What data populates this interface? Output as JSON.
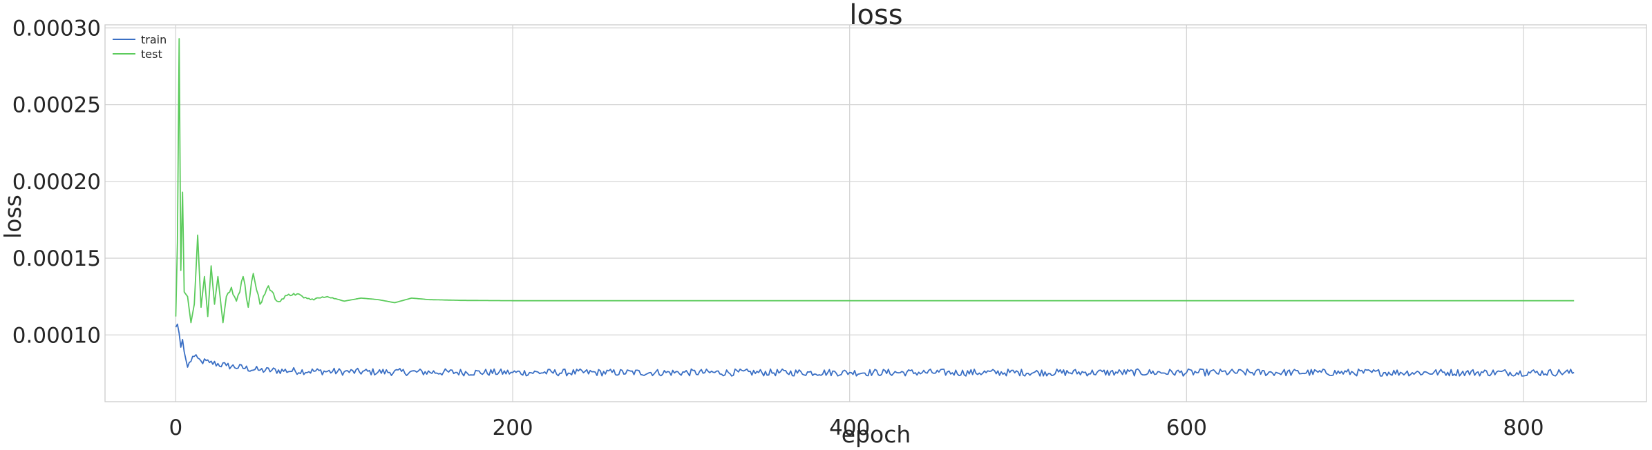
{
  "chart_data": {
    "type": "line",
    "title": "loss",
    "xlabel": "epoch",
    "ylabel": "loss",
    "xlim": [
      -42,
      873
    ],
    "ylim": [
      5.65e-05,
      0.000302
    ],
    "xticks": [
      0,
      200,
      400,
      600,
      800
    ],
    "xtick_labels": [
      "0",
      "200",
      "400",
      "600",
      "800"
    ],
    "yticks": [
      0.0001,
      0.00015,
      0.0002,
      0.00025,
      0.0003
    ],
    "ytick_labels": [
      "0.00010",
      "0.00015",
      "0.00020",
      "0.00025",
      "0.00030"
    ],
    "grid": true,
    "legend_position": "top-left",
    "x_max": 830,
    "series": [
      {
        "name": "train",
        "color": "#3a6fc4",
        "anchors": [
          [
            0,
            0.000105
          ],
          [
            1,
            0.000107
          ],
          [
            2,
            0.000101
          ],
          [
            3,
            9.2e-05
          ],
          [
            4,
            9.7e-05
          ],
          [
            5,
            8.9e-05
          ],
          [
            7,
            7.9e-05
          ],
          [
            10,
            8.6e-05
          ],
          [
            15,
            8.3e-05
          ],
          [
            20,
            8.2e-05
          ],
          [
            30,
            8e-05
          ],
          [
            50,
            7.7e-05
          ],
          [
            100,
            7.6e-05
          ],
          [
            200,
            7.55e-05
          ],
          [
            400,
            7.55e-05
          ],
          [
            830,
            7.55e-05
          ]
        ],
        "noise": 2.3e-06
      },
      {
        "name": "test",
        "color": "#5ccb5c",
        "anchors": [
          [
            0,
            0.000112
          ],
          [
            1,
            0.00016
          ],
          [
            2,
            0.000293
          ],
          [
            3,
            0.000142
          ],
          [
            4,
            0.000193
          ],
          [
            5,
            0.000128
          ],
          [
            7,
            0.000125
          ],
          [
            9,
            0.000108
          ],
          [
            11,
            0.00012
          ],
          [
            13,
            0.000165
          ],
          [
            15,
            0.000118
          ],
          [
            17,
            0.000138
          ],
          [
            19,
            0.000112
          ],
          [
            21,
            0.000145
          ],
          [
            23,
            0.00012
          ],
          [
            25,
            0.000138
          ],
          [
            27,
            0.000118
          ],
          [
            28,
            0.000108
          ],
          [
            30,
            0.000125
          ],
          [
            33,
            0.000131
          ],
          [
            36,
            0.000122
          ],
          [
            40,
            0.000138
          ],
          [
            43,
            0.000118
          ],
          [
            46,
            0.00014
          ],
          [
            50,
            0.00012
          ],
          [
            55,
            0.000132
          ],
          [
            60,
            0.000122
          ],
          [
            70,
            0.000127
          ],
          [
            80,
            0.000123
          ],
          [
            90,
            0.000125
          ],
          [
            100,
            0.000122
          ],
          [
            110,
            0.000124
          ],
          [
            120,
            0.000123
          ],
          [
            130,
            0.000121
          ],
          [
            140,
            0.000124
          ],
          [
            150,
            0.000123
          ],
          [
            170,
            0.0001225
          ],
          [
            200,
            0.0001223
          ],
          [
            830,
            0.0001223
          ]
        ],
        "noise_until": 100,
        "noise": 2.5e-06
      }
    ]
  }
}
